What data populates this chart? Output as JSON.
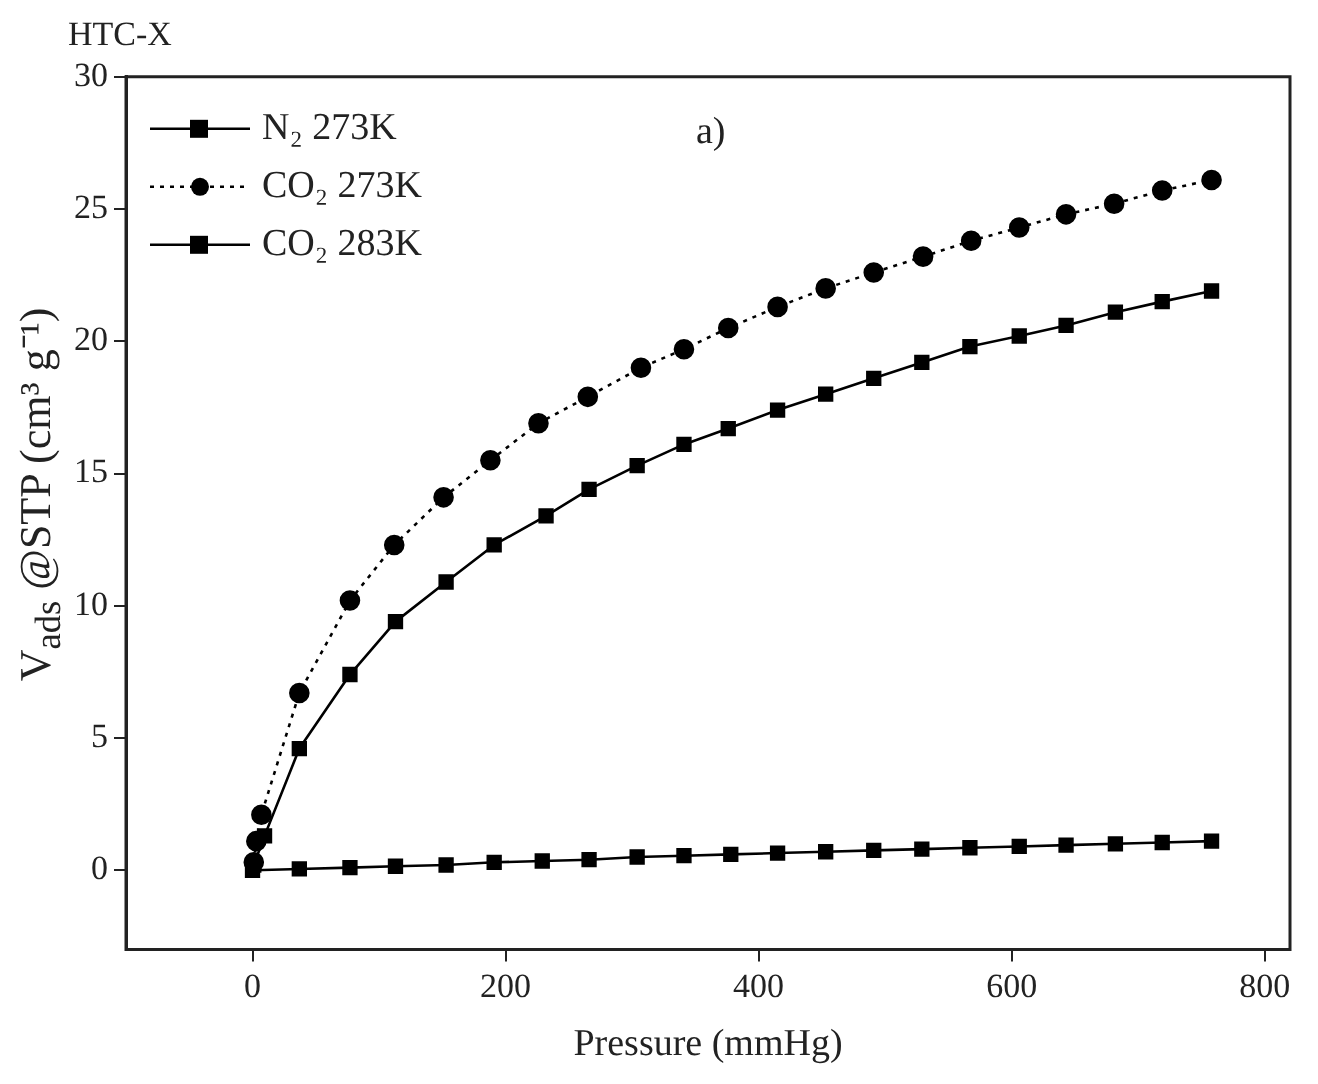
{
  "chart_data": {
    "type": "line",
    "title": "HTC-X",
    "xlabel": "Pressure (mmHg)",
    "ylabel": "V$_{ads}$ @STP (cm³ g⁻¹)",
    "annotations": [
      "a)"
    ],
    "xlim": [
      -100,
      820
    ],
    "xticks": [
      0,
      200,
      400,
      600,
      800
    ],
    "ylim": [
      -3,
      30
    ],
    "yticks": [
      0,
      5,
      10,
      15,
      20,
      25,
      30
    ],
    "grid": false,
    "legend": "top left",
    "series": [
      {
        "name": "N₂ 273K",
        "color": "#000000",
        "marker": "square",
        "line_style": "solid",
        "x": [
          0,
          37,
          77,
          113,
          153,
          191,
          229,
          266,
          304,
          341,
          378,
          415,
          453,
          491,
          529,
          567,
          606,
          643,
          682,
          719,
          758
        ],
        "values": [
          0,
          0.05,
          0.1,
          0.15,
          0.2,
          0.3,
          0.35,
          0.4,
          0.5,
          0.55,
          0.6,
          0.65,
          0.7,
          0.75,
          0.8,
          0.85,
          0.9,
          0.95,
          1,
          1.05,
          1.1
        ]
      },
      {
        "name": "CO₂ 273K",
        "color": "#000000",
        "marker": "circle",
        "line_style": "dotted",
        "x": [
          1,
          3,
          7,
          37,
          77,
          112,
          151,
          188,
          226,
          265,
          307,
          341,
          376,
          415,
          453,
          491,
          530,
          568,
          606,
          643,
          681,
          719,
          758
        ],
        "values": [
          0.3,
          1.1,
          2.1,
          6.7,
          10.2,
          12.3,
          14.1,
          15.5,
          16.9,
          17.9,
          19,
          19.7,
          20.5,
          21.3,
          22,
          22.6,
          23.2,
          23.8,
          24.3,
          24.8,
          25.2,
          25.7,
          26.1
        ]
      },
      {
        "name": "CO₂ 283K",
        "color": "#000000",
        "marker": "square",
        "line_style": "solid",
        "x": [
          1,
          9.5,
          37,
          77,
          113,
          153,
          191,
          232,
          266,
          304,
          341,
          376,
          415,
          453,
          491,
          529,
          567,
          606,
          643,
          682,
          719,
          758
        ],
        "values": [
          0.2,
          1.3,
          4.6,
          7.4,
          9.4,
          10.9,
          12.3,
          13.4,
          14.4,
          15.3,
          16.1,
          16.7,
          17.4,
          18,
          18.6,
          19.2,
          19.8,
          20.2,
          20.6,
          21.1,
          21.5,
          21.9
        ]
      }
    ]
  }
}
